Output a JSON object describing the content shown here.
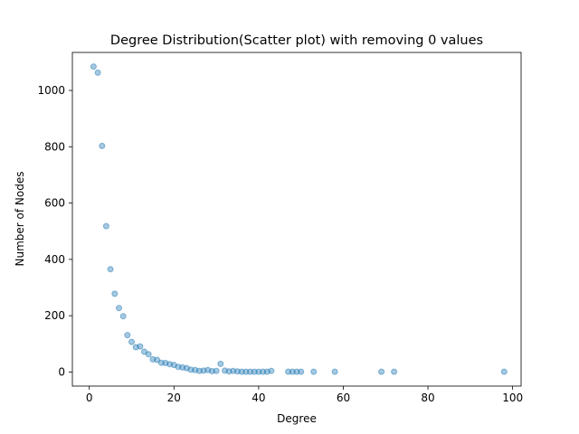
{
  "chart_data": {
    "type": "scatter",
    "title": "Degree Distribution(Scatter plot) with removing 0 values",
    "xlabel": "Degree",
    "ylabel": "Number of Nodes",
    "xlim": [
      -4,
      102
    ],
    "ylim": [
      -50,
      1135
    ],
    "xticks": [
      0,
      20,
      40,
      60,
      80,
      100
    ],
    "yticks": [
      0,
      200,
      400,
      600,
      800,
      1000
    ],
    "grid": false,
    "marker_color": "#1f77b4",
    "marker_alpha": 0.4,
    "points": [
      [
        1,
        1085
      ],
      [
        2,
        1063
      ],
      [
        3,
        803
      ],
      [
        4,
        518
      ],
      [
        5,
        365
      ],
      [
        6,
        278
      ],
      [
        7,
        227
      ],
      [
        8,
        198
      ],
      [
        9,
        131
      ],
      [
        10,
        107
      ],
      [
        11,
        88
      ],
      [
        12,
        91
      ],
      [
        13,
        72
      ],
      [
        14,
        63
      ],
      [
        15,
        45
      ],
      [
        16,
        43
      ],
      [
        17,
        33
      ],
      [
        18,
        32
      ],
      [
        19,
        28
      ],
      [
        20,
        25
      ],
      [
        21,
        18
      ],
      [
        22,
        16
      ],
      [
        23,
        14
      ],
      [
        24,
        8
      ],
      [
        25,
        7
      ],
      [
        26,
        4
      ],
      [
        27,
        5
      ],
      [
        28,
        7
      ],
      [
        29,
        3
      ],
      [
        30,
        4
      ],
      [
        31,
        29
      ],
      [
        32,
        5
      ],
      [
        33,
        2
      ],
      [
        34,
        4
      ],
      [
        35,
        2
      ],
      [
        36,
        1
      ],
      [
        37,
        1
      ],
      [
        38,
        1
      ],
      [
        39,
        1
      ],
      [
        40,
        1
      ],
      [
        41,
        1
      ],
      [
        42,
        1
      ],
      [
        43,
        4
      ],
      [
        47,
        1
      ],
      [
        48,
        1
      ],
      [
        49,
        1
      ],
      [
        50,
        1
      ],
      [
        53,
        1
      ],
      [
        58,
        1
      ],
      [
        69,
        1
      ],
      [
        72,
        1
      ],
      [
        98,
        1
      ]
    ]
  }
}
